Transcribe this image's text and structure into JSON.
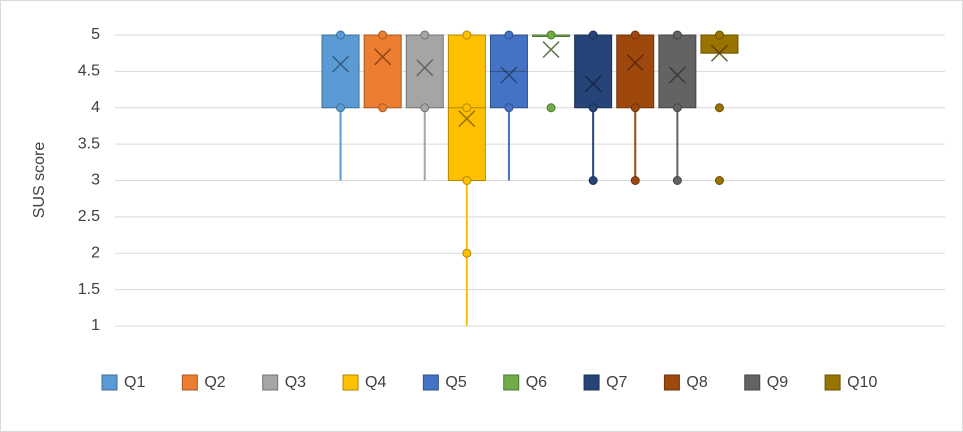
{
  "chart_data": {
    "type": "box",
    "y_label": "SUS score",
    "ylim": [
      1,
      5
    ],
    "yticks": [
      1,
      1.5,
      2,
      2.5,
      3,
      3.5,
      4,
      4.5,
      5
    ],
    "grid": true,
    "legend": "bottom",
    "series": [
      {
        "name": "Q1",
        "color": "#5b9bd5",
        "min": 3,
        "q1": 4,
        "median": 5,
        "q3": 5,
        "max": 5,
        "mean": 4.6,
        "points": [
          5,
          4
        ]
      },
      {
        "name": "Q2",
        "color": "#ed7d31",
        "min": 4,
        "q1": 4,
        "median": 5,
        "q3": 5,
        "max": 5,
        "mean": 4.7,
        "points": [
          5,
          4
        ]
      },
      {
        "name": "Q3",
        "color": "#a5a5a5",
        "min": 3,
        "q1": 4,
        "median": 5,
        "q3": 5,
        "max": 5,
        "mean": 4.55,
        "points": [
          5,
          4
        ]
      },
      {
        "name": "Q4",
        "color": "#ffc000",
        "min": 1,
        "q1": 3,
        "median": 4,
        "q3": 5,
        "max": 5,
        "mean": 3.85,
        "points": [
          5,
          4,
          3,
          2
        ]
      },
      {
        "name": "Q5",
        "color": "#4472c4",
        "min": 3,
        "q1": 4,
        "median": 4.5,
        "q3": 5,
        "max": 5,
        "mean": 4.45,
        "points": [
          5,
          4
        ]
      },
      {
        "name": "Q6",
        "color": "#70ad47",
        "min": 5,
        "q1": 5,
        "median": 5,
        "q3": 5,
        "max": 5,
        "mean": 4.8,
        "points": [
          5,
          4
        ]
      },
      {
        "name": "Q7",
        "color": "#264478",
        "min": 3,
        "q1": 4,
        "median": 5,
        "q3": 5,
        "max": 5,
        "mean": 4.33,
        "points": [
          5,
          4,
          3
        ]
      },
      {
        "name": "Q8",
        "color": "#9e480e",
        "min": 3,
        "q1": 4,
        "median": 5,
        "q3": 5,
        "max": 5,
        "mean": 4.62,
        "points": [
          5,
          4,
          3
        ]
      },
      {
        "name": "Q9",
        "color": "#636363",
        "min": 3,
        "q1": 4,
        "median": 5,
        "q3": 5,
        "max": 5,
        "mean": 4.45,
        "points": [
          5,
          4,
          3
        ]
      },
      {
        "name": "Q10",
        "color": "#997300",
        "min": 4.75,
        "q1": 4.75,
        "median": 5,
        "q3": 5,
        "max": 5,
        "mean": 4.75,
        "points": [
          5,
          4,
          3
        ]
      }
    ]
  }
}
